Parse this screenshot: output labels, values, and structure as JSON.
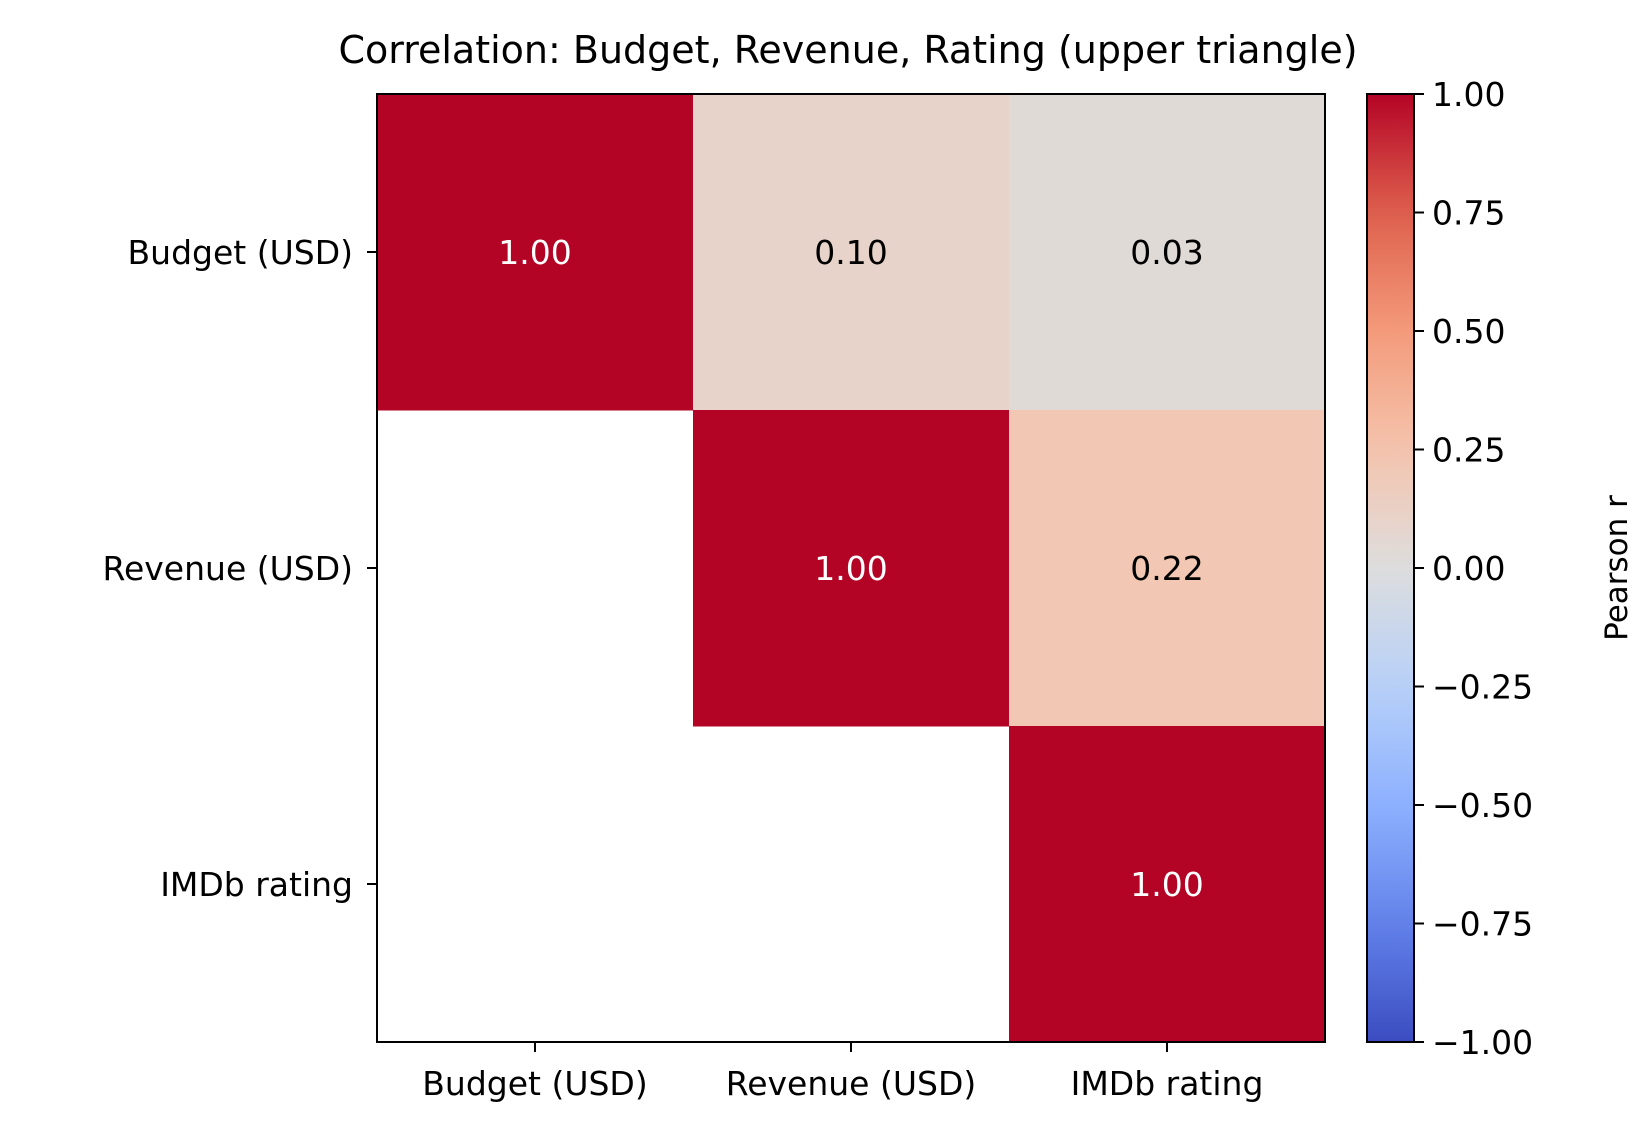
{
  "chart_data": {
    "type": "heatmap",
    "title": "Correlation: Budget, Revenue, Rating (upper triangle)",
    "xlabel": "",
    "ylabel": "",
    "x_categories": [
      "Budget (USD)",
      "Revenue (USD)",
      "IMDb rating"
    ],
    "y_categories": [
      "Budget (USD)",
      "Revenue (USD)",
      "IMDb rating"
    ],
    "mask": "lower triangle hidden",
    "values": [
      [
        1.0,
        0.1,
        0.03
      ],
      [
        null,
        1.0,
        0.22
      ],
      [
        null,
        null,
        1.0
      ]
    ],
    "value_labels": [
      [
        "1.00",
        "0.10",
        "0.03"
      ],
      [
        null,
        "1.00",
        "0.22"
      ],
      [
        null,
        null,
        "1.00"
      ]
    ],
    "colormap": "coolwarm",
    "colorbar": {
      "label": "Pearson r",
      "range": [
        -1.0,
        1.0
      ],
      "ticks": [
        1.0,
        0.75,
        0.5,
        0.25,
        0.0,
        -0.25,
        -0.5,
        -0.75,
        -1.0
      ],
      "tick_labels": [
        "1.00",
        "0.75",
        "0.50",
        "0.25",
        "0.00",
        "−0.25",
        "−0.50",
        "−0.75",
        "−1.00"
      ]
    },
    "grid": false
  }
}
